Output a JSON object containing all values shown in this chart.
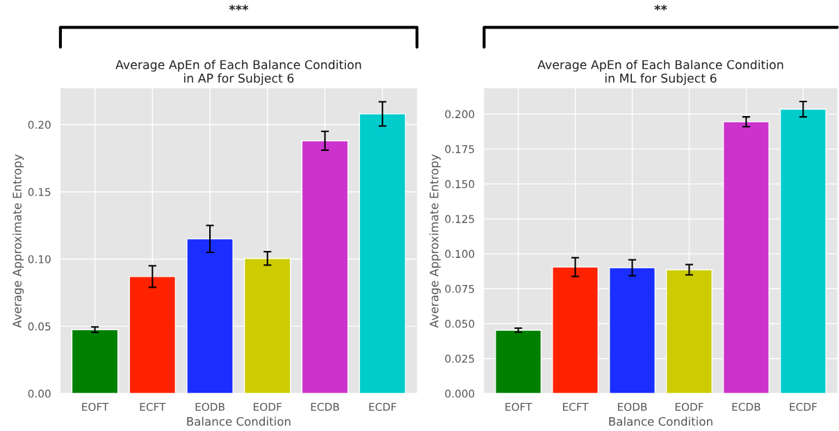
{
  "chart_data": [
    {
      "type": "bar",
      "title": "Average ApEn of Each Balance Condition\nin AP for Subject 6",
      "xlabel": "Balance Condition",
      "ylabel": "Average Approximate Entropy",
      "categories": [
        "EOFT",
        "ECFT",
        "EODB",
        "EODF",
        "ECDB",
        "ECDF"
      ],
      "values": [
        0.0475,
        0.087,
        0.115,
        0.1005,
        0.188,
        0.208
      ],
      "errors": [
        0.002,
        0.008,
        0.01,
        0.005,
        0.007,
        0.009
      ],
      "colors": [
        "#008000",
        "#ff2200",
        "#1a2eff",
        "#cccc00",
        "#cc33cc",
        "#00cccc"
      ],
      "ylim": [
        0,
        0.227
      ],
      "yticks": [
        {
          "value": 0,
          "label": "0.00"
        },
        {
          "value": 0.05,
          "label": "0.05"
        },
        {
          "value": 0.1,
          "label": "0.10"
        },
        {
          "value": 0.15,
          "label": "0.15"
        },
        {
          "value": 0.2,
          "label": "0.20"
        }
      ],
      "grid": true,
      "annotations": [
        "***"
      ]
    },
    {
      "type": "bar",
      "title": "Average ApEn of Each Balance Condition\nin ML for Subject 6",
      "xlabel": "Balance Condition",
      "ylabel": "Average Approximate Entropy",
      "categories": [
        "EOFT",
        "ECFT",
        "EODB",
        "EODF",
        "ECDB",
        "ECDF"
      ],
      "values": [
        0.0453,
        0.0905,
        0.09,
        0.0886,
        0.1945,
        0.2035
      ],
      "errors": [
        0.0015,
        0.0067,
        0.0057,
        0.0037,
        0.0035,
        0.0055
      ],
      "colors": [
        "#008000",
        "#ff2200",
        "#1a2eff",
        "#cccc00",
        "#cc33cc",
        "#00cccc"
      ],
      "ylim": [
        0,
        0.2184
      ],
      "yticks": [
        {
          "value": 0,
          "label": "0.000"
        },
        {
          "value": 0.025,
          "label": "0.025"
        },
        {
          "value": 0.05,
          "label": "0.050"
        },
        {
          "value": 0.075,
          "label": "0.075"
        },
        {
          "value": 0.1,
          "label": "0.100"
        },
        {
          "value": 0.125,
          "label": "0.125"
        },
        {
          "value": 0.15,
          "label": "0.150"
        },
        {
          "value": 0.175,
          "label": "0.175"
        },
        {
          "value": 0.2,
          "label": "0.200"
        }
      ],
      "grid": true,
      "annotations": [
        "**"
      ]
    }
  ]
}
